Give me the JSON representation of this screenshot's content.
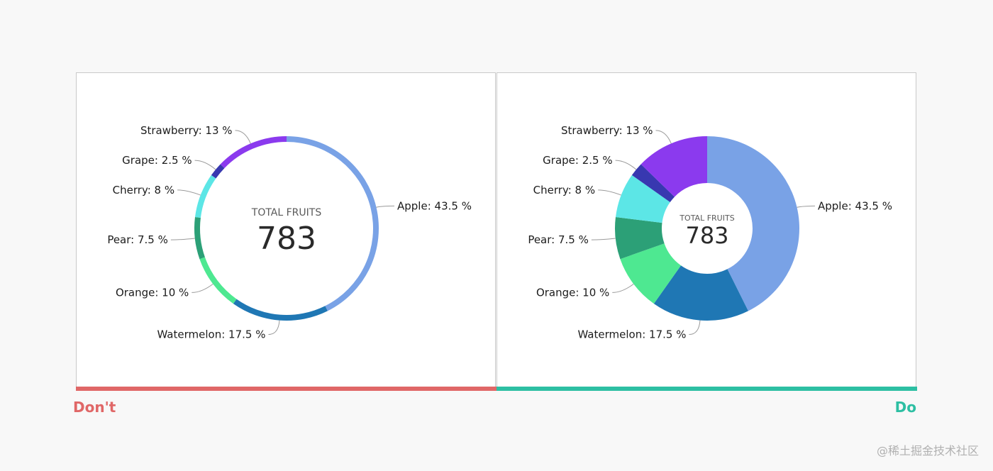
{
  "chart_data": [
    {
      "type": "pie",
      "variant": "thin-ring",
      "center_label": "TOTAL FRUITS",
      "center_value": "783",
      "slices": [
        {
          "name": "Apple",
          "value": 43.5,
          "label": "Apple: 43.5 %",
          "color": "#79a2e6"
        },
        {
          "name": "Watermelon",
          "value": 17.5,
          "label": "Watermelon: 17.5 %",
          "color": "#1f77b4"
        },
        {
          "name": "Orange",
          "value": 10,
          "label": "Orange: 10 %",
          "color": "#4ee891"
        },
        {
          "name": "Pear",
          "value": 7.5,
          "label": "Pear: 7.5 %",
          "color": "#2ca077"
        },
        {
          "name": "Cherry",
          "value": 8,
          "label": "Cherry: 8 %",
          "color": "#5ce6e6"
        },
        {
          "name": "Grape",
          "value": 2.5,
          "label": "Grape: 2.5 %",
          "color": "#3838b0"
        },
        {
          "name": "Strawberry",
          "value": 13,
          "label": "Strawberry: 13 %",
          "color": "#8b3aee"
        }
      ]
    },
    {
      "type": "pie",
      "variant": "donut",
      "center_label": "TOTAL FRUITS",
      "center_value": "783",
      "slices": [
        {
          "name": "Apple",
          "value": 43.5,
          "label": "Apple: 43.5 %",
          "color": "#79a2e6"
        },
        {
          "name": "Watermelon",
          "value": 17.5,
          "label": "Watermelon: 17.5 %",
          "color": "#1f77b4"
        },
        {
          "name": "Orange",
          "value": 10,
          "label": "Orange: 10 %",
          "color": "#4ee891"
        },
        {
          "name": "Pear",
          "value": 7.5,
          "label": "Pear: 7.5 %",
          "color": "#2ca077"
        },
        {
          "name": "Cherry",
          "value": 8,
          "label": "Cherry: 8 %",
          "color": "#5ce6e6"
        },
        {
          "name": "Grape",
          "value": 2.5,
          "label": "Grape: 2.5 %",
          "color": "#3838b0"
        },
        {
          "name": "Strawberry",
          "value": 13,
          "label": "Strawberry: 13 %",
          "color": "#8b3aee"
        }
      ]
    }
  ],
  "verdicts": {
    "dont": {
      "label": "Don't",
      "color": "#e06767"
    },
    "do": {
      "label": "Do",
      "color": "#2dbfa3"
    }
  },
  "watermark": "@稀土掘金技术社区"
}
